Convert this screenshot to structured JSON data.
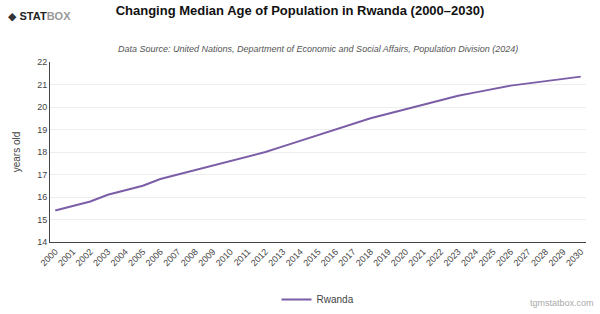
{
  "chart_data": {
    "type": "line",
    "title": "Changing Median Age of Population in Rwanda (2000–2030)",
    "subtitle": "Data Source: United Nations, Department of Economic and Social Affairs, Population Division (2024)",
    "ylabel": "years old",
    "annotations": [
      "◆",
      "STAT",
      "BOX",
      "tgmstatbox.com"
    ],
    "x": [
      2000,
      2001,
      2002,
      2003,
      2004,
      2005,
      2006,
      2007,
      2008,
      2009,
      2010,
      2011,
      2012,
      2013,
      2014,
      2015,
      2016,
      2017,
      2018,
      2019,
      2020,
      2021,
      2022,
      2023,
      2024,
      2025,
      2026,
      2027,
      2028,
      2029,
      2030
    ],
    "series": [
      {
        "name": "Rwanda",
        "color": "#7b5ea7",
        "values": [
          15.4,
          15.6,
          15.8,
          16.1,
          16.3,
          16.5,
          16.8,
          17.0,
          17.2,
          17.4,
          17.6,
          17.8,
          18.0,
          18.25,
          18.5,
          18.75,
          19.0,
          19.25,
          19.5,
          19.7,
          19.9,
          20.1,
          20.3,
          20.5,
          20.65,
          20.8,
          20.95,
          21.05,
          21.15,
          21.25,
          21.35
        ]
      }
    ],
    "xlim": [
      1999.7,
      2030.3
    ],
    "xticks": [
      2000,
      2001,
      2002,
      2003,
      2004,
      2005,
      2006,
      2007,
      2008,
      2009,
      2010,
      2011,
      2012,
      2013,
      2014,
      2015,
      2016,
      2017,
      2018,
      2019,
      2020,
      2021,
      2022,
      2023,
      2024,
      2025,
      2026,
      2027,
      2028,
      2029,
      2030
    ],
    "ylim": [
      14,
      22
    ],
    "yticks": [
      14,
      15,
      16,
      17,
      18,
      19,
      20,
      21,
      22
    ],
    "grid": true,
    "legend": "bottom"
  }
}
